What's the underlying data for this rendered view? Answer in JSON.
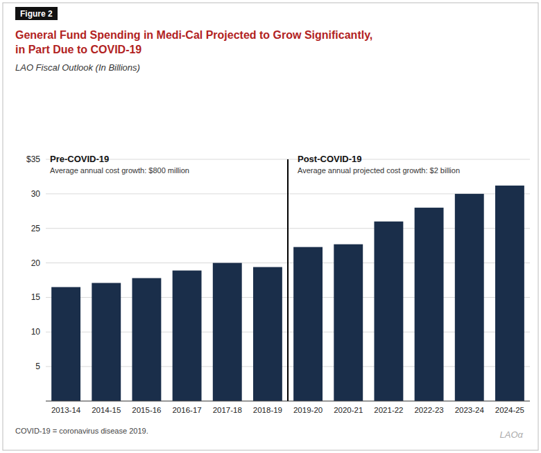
{
  "chart_data": {
    "type": "bar",
    "figure_label": "Figure 2",
    "title": [
      "General Fund Spending in Medi-Cal Projected to Grow Significantly,",
      "in Part Due to COVID-19"
    ],
    "subtitle": "LAO Fiscal Outlook (In Billions)",
    "categories": [
      "2013-14",
      "2014-15",
      "2015-16",
      "2016-17",
      "2017-18",
      "2018-19",
      "2019-20",
      "2020-21",
      "2021-22",
      "2022-23",
      "2023-24",
      "2024-25"
    ],
    "values": [
      16.5,
      17.1,
      17.8,
      18.9,
      20.0,
      19.4,
      22.3,
      22.7,
      26.0,
      28.0,
      30.0,
      31.2
    ],
    "color": "#1a2e4a",
    "ylim": [
      0,
      35
    ],
    "yticks": [
      {
        "value": 0,
        "label": null
      },
      5,
      10,
      15,
      20,
      25,
      30,
      {
        "value": 35,
        "label": "$35"
      }
    ],
    "grid": true,
    "annotations": [
      {
        "label": "Pre-COVID-19",
        "text": "Average annual cost growth: $800 million",
        "from": "2013-14"
      },
      {
        "label": "Post-COVID-19",
        "text": "Average annual projected cost growth: $2 billion",
        "from": "2019-20"
      }
    ],
    "footnote": "COVID-19 = coronavirus disease 2019.",
    "watermark": "LAOα"
  }
}
